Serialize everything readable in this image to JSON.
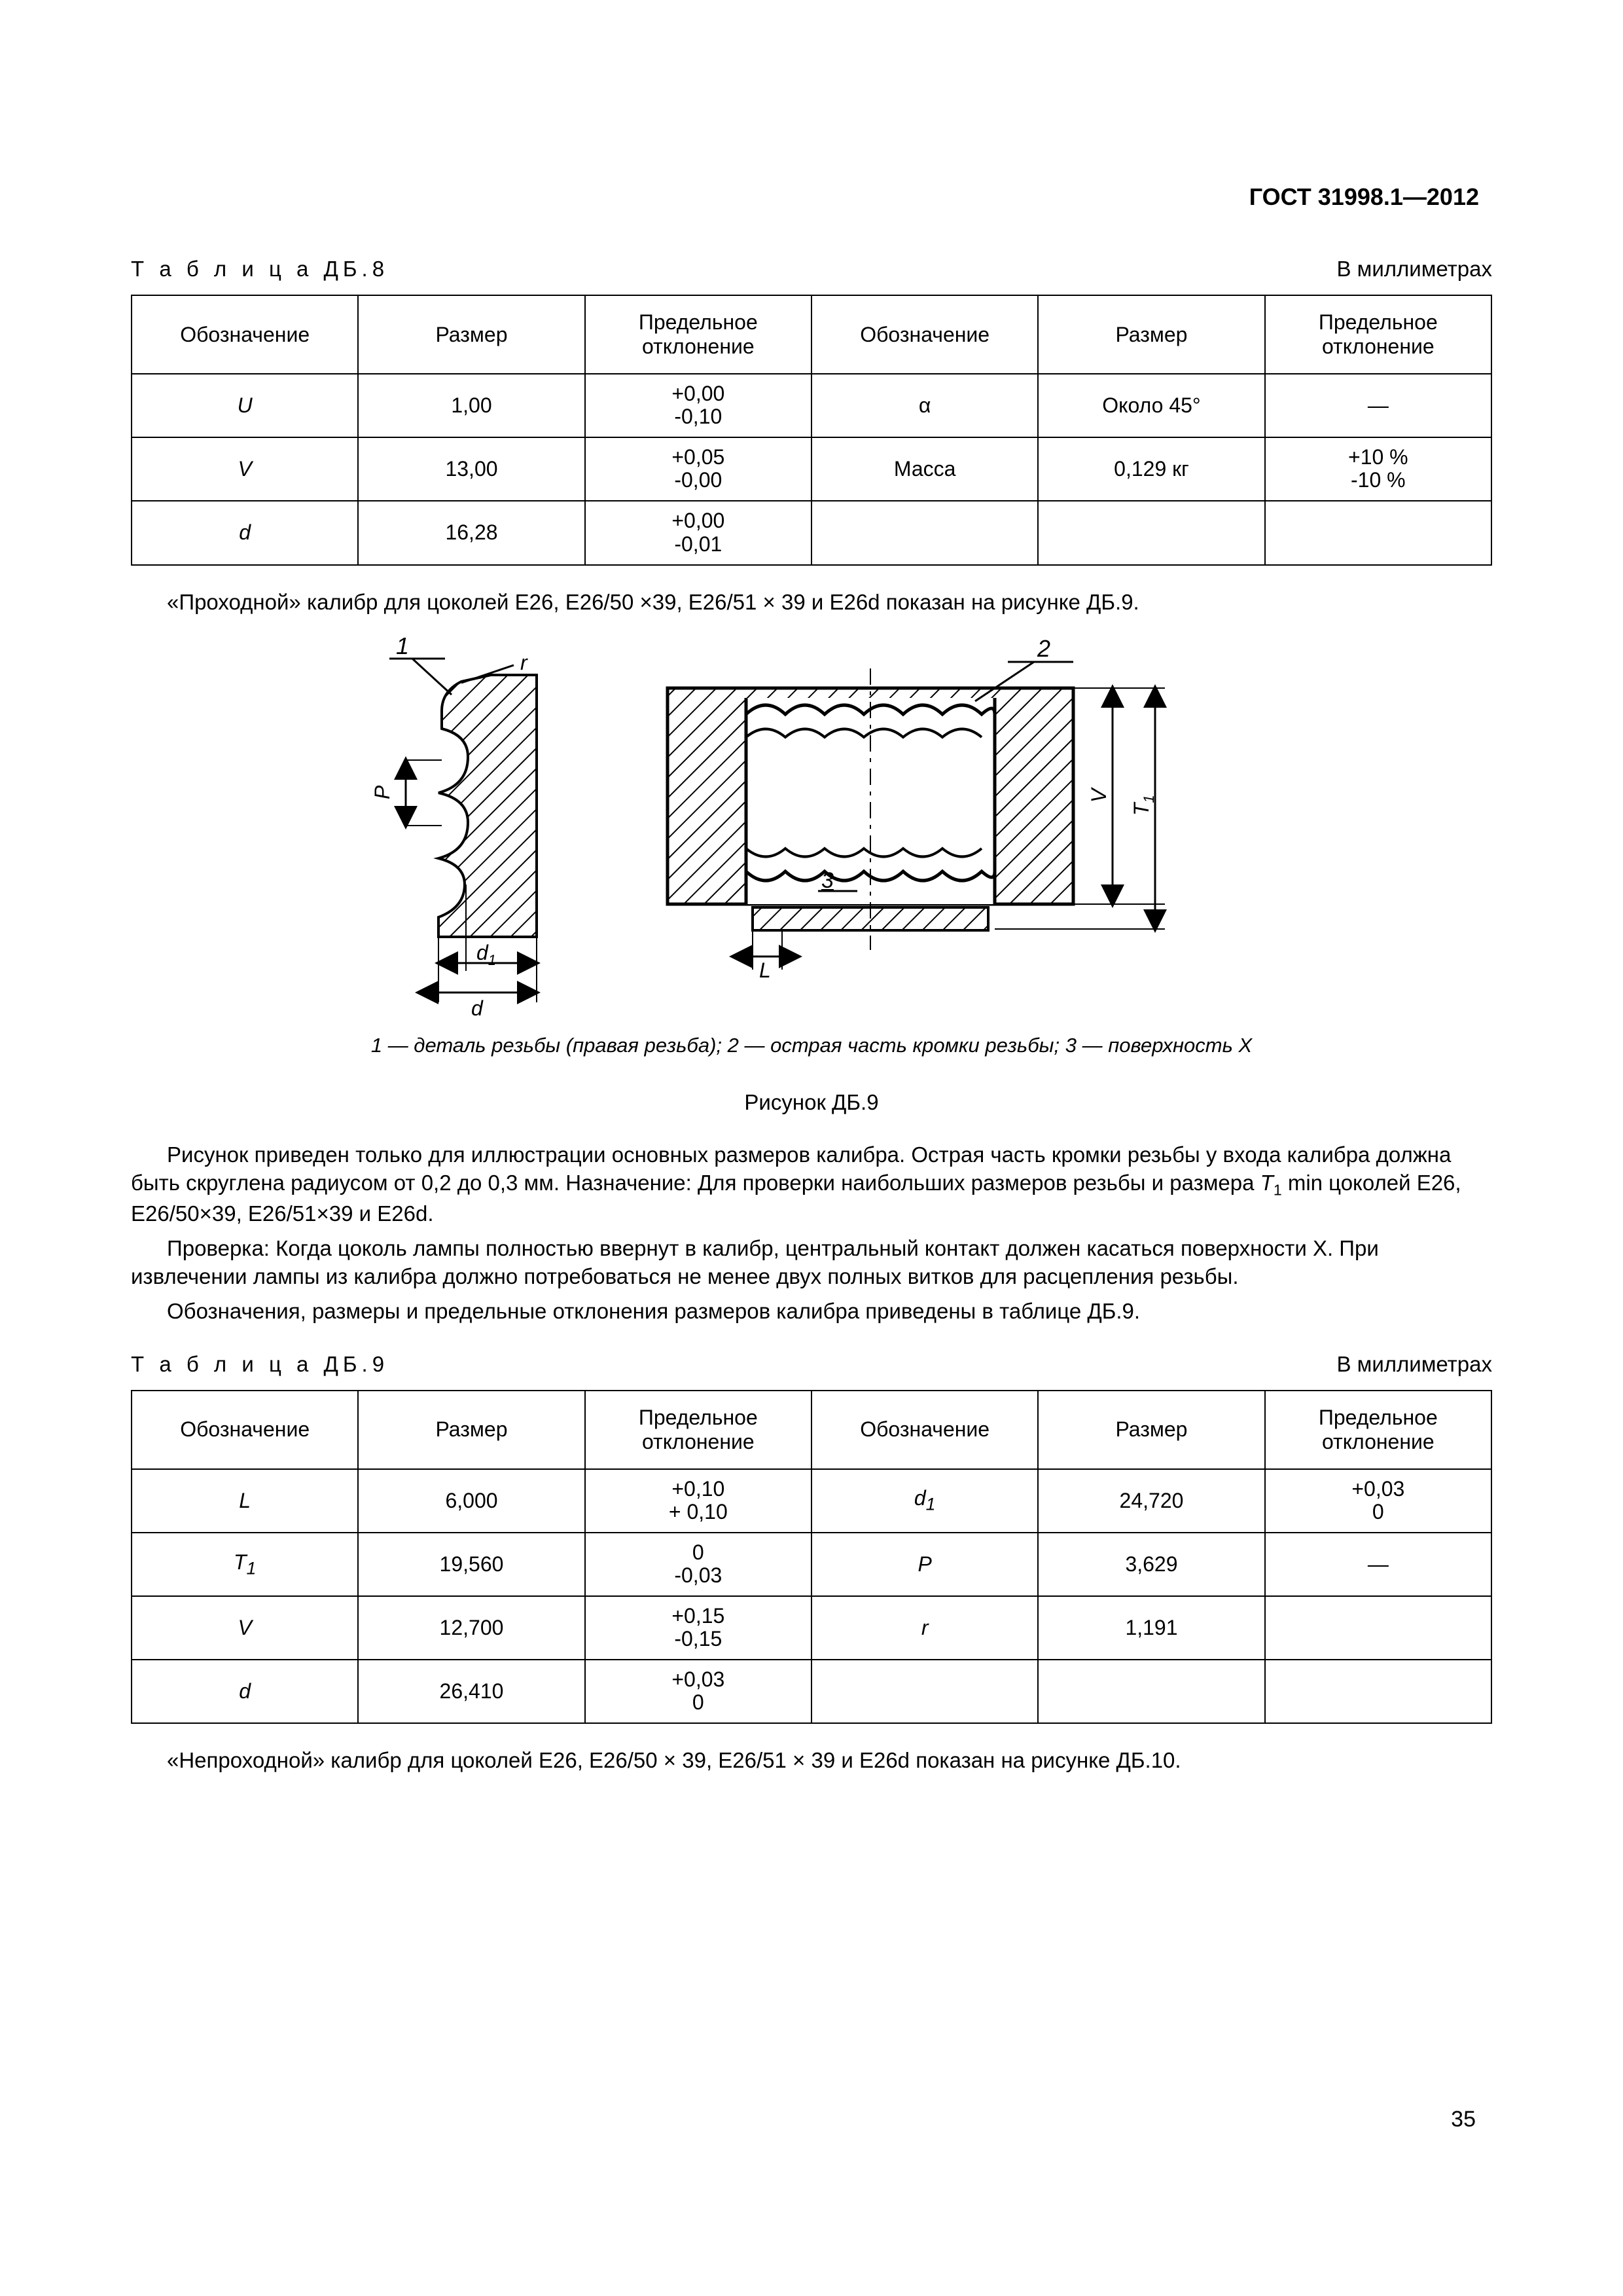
{
  "standard_code": "ГОСТ 31998.1—2012",
  "page_number": "35",
  "table8": {
    "label": "Т а б л и ц а  ДБ.8",
    "units": "В миллиметрах",
    "headers": [
      "Обозначение",
      "Размер",
      "Предельное отклонение",
      "Обозначение",
      "Размер",
      "Предельное отклонение"
    ],
    "rows": [
      {
        "a": "U",
        "b": "1,00",
        "c1": "+0,00",
        "c2": "-0,10",
        "d": "α",
        "e": "Около 45°",
        "f1": "—",
        "f2": ""
      },
      {
        "a": "V",
        "b": "13,00",
        "c1": "+0,05",
        "c2": "-0,00",
        "d": "Масса",
        "e": "0,129 кг",
        "f1": "+10 %",
        "f2": "-10 %"
      },
      {
        "a": "d",
        "b": "16,28",
        "c1": "+0,00",
        "c2": "-0,01",
        "d": "",
        "e": "",
        "f1": "",
        "f2": ""
      }
    ]
  },
  "para_after_t8": "«Проходной» калибр для цоколей Е26, Е26/50 ×39, Е26/51 × 39 и E26d показан на рисунке ДБ.9.",
  "figure9": {
    "callouts": {
      "one": "1",
      "two": "2",
      "three": "3"
    },
    "dims": {
      "r": "r",
      "P": "P",
      "d1": "d",
      "d1sub": "1",
      "d": "d",
      "L": "L",
      "V": "V",
      "T1": "T",
      "T1sub": "1"
    },
    "caption_html": "1 — деталь резьбы (правая резьба); 2 — острая часть кромки резьбы; 3 — поверхность X",
    "title": "Рисунок ДБ.9"
  },
  "para_block": {
    "p1a": "Рисунок приведен только для иллюстрации основных размеров калибра. Острая часть кромки резьбы у входа калибра должна быть скруглена радиусом от 0,2 до 0,3 мм. Назначение: Для проверки наибольших размеров резьбы и размера ",
    "p1b": " min цоколей Е26, Е26/50×39, Е26/51×39 и E26d.",
    "p2": "Проверка: Когда цоколь лампы полностью ввернут в калибр, центральный контакт должен касаться поверхности X. При извлечении лампы из калибра должно потребоваться не менее двух полных витков для расцепления резьбы.",
    "p3": "Обозначения, размеры и предельные отклонения размеров калибра приведены в таблице ДБ.9."
  },
  "table9": {
    "label": "Т а б л и ц а  ДБ.9",
    "units": "В миллиметрах",
    "headers": [
      "Обозначение",
      "Размер",
      "Предельное отклонение",
      "Обозначение",
      "Размер",
      "Предельное отклонение"
    ],
    "rows": [
      {
        "a_html": "L",
        "b": "6,000",
        "c1": "+0,10",
        "c2": "+ 0,10",
        "d_html": "d<sub>1</sub>",
        "e": "24,720",
        "f1": "+0,03",
        "f2": "0"
      },
      {
        "a_html": "T<sub>1</sub>",
        "b": "19,560",
        "c1": "0",
        "c2": "-0,03",
        "d_html": "P",
        "e": "3,629",
        "f1": "—",
        "f2": ""
      },
      {
        "a_html": "V",
        "b": "12,700",
        "c1": "+0,15",
        "c2": "-0,15",
        "d_html": "r",
        "e": "1,191",
        "f1": "",
        "f2": ""
      },
      {
        "a_html": "d",
        "b": "26,410",
        "c1": "+0,03",
        "c2": "0",
        "d_html": "",
        "e": "",
        "f1": "",
        "f2": ""
      }
    ]
  },
  "para_after_t9": "«Непроходной» калибр для цоколей Е26, Е26/50 × 39, Е26/51 × 39 и E26d показан на рисунке ДБ.10."
}
